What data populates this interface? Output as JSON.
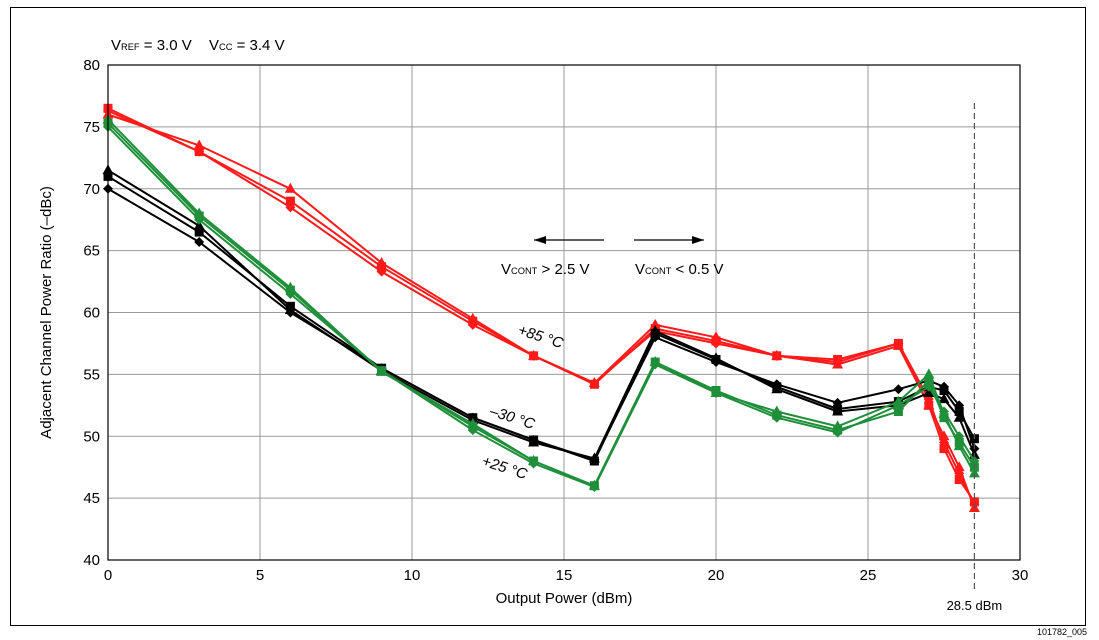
{
  "figure_id": "101782_005",
  "chart_data": {
    "type": "line",
    "title": "",
    "xlabel": "Output Power (dBm)",
    "ylabel": "Adjacent Channel Power Ratio (–dBc)",
    "xlim": [
      0,
      30
    ],
    "ylim": [
      40,
      80
    ],
    "xticks": [
      0,
      5,
      10,
      15,
      20,
      25,
      30
    ],
    "yticks": [
      40,
      45,
      50,
      55,
      60,
      65,
      70,
      75,
      80
    ],
    "grid": true,
    "conditions": {
      "vref": {
        "sym": "V",
        "sub": "REF",
        "rest": " = 3.0 V"
      },
      "vcc": {
        "sym": "V",
        "sub": "CC",
        "rest": " = 3.4 V"
      }
    },
    "annotations": {
      "arrow_left_label": {
        "sym": "V",
        "sub": "CONT",
        "rest": " > 2.5 V"
      },
      "arrow_right_label": {
        "sym": "V",
        "sub": "CONT",
        "rest": " < 0.5 V"
      },
      "marker_label": "28.5 dBm",
      "marker_x": 28.5
    },
    "temperature_labels": {
      "hot": "+85 °C",
      "cold": "–30 °C",
      "room": "+25 °C"
    },
    "colors": {
      "hot": "#ff1a1a",
      "cold": "#000000",
      "room": "#1f8f3a"
    },
    "series": [
      {
        "group": "hot",
        "marker": "diamond",
        "x": [
          0,
          3,
          6,
          9,
          12,
          14,
          16,
          18,
          20,
          22,
          24,
          26,
          27,
          27.5,
          28,
          28.5
        ],
        "y": [
          76.3,
          73.0,
          68.5,
          63.3,
          59.0,
          56.5,
          54.3,
          58.5,
          57.5,
          56.5,
          56.0,
          57.5,
          53.0,
          49.5,
          47.0,
          44.5
        ]
      },
      {
        "group": "hot",
        "marker": "square",
        "x": [
          0,
          3,
          6,
          9,
          12,
          14,
          16,
          18,
          20,
          22,
          24,
          26,
          27,
          27.5,
          28,
          28.5
        ],
        "y": [
          76.5,
          73.0,
          69.0,
          63.7,
          59.3,
          56.5,
          54.2,
          58.7,
          57.7,
          56.5,
          56.2,
          57.5,
          52.5,
          49.0,
          46.5,
          44.7
        ]
      },
      {
        "group": "hot",
        "marker": "triangle",
        "x": [
          0,
          3,
          6,
          9,
          12,
          14,
          16,
          18,
          20,
          22,
          24,
          26,
          27,
          27.5,
          28,
          28.5
        ],
        "y": [
          76.0,
          73.5,
          70.0,
          64.0,
          59.5,
          56.5,
          54.3,
          59.0,
          58.0,
          56.5,
          55.8,
          57.3,
          52.5,
          50.0,
          47.5,
          44.2
        ]
      },
      {
        "group": "cold",
        "marker": "diamond",
        "x": [
          0,
          3,
          6,
          9,
          12,
          14,
          16,
          18,
          20,
          22,
          24,
          26,
          27,
          27.5,
          28,
          28.5
        ],
        "y": [
          70.0,
          65.7,
          60.0,
          55.5,
          51.5,
          49.7,
          48.1,
          58.0,
          56.0,
          54.2,
          52.7,
          53.8,
          54.5,
          54.0,
          52.5,
          49.0
        ]
      },
      {
        "group": "cold",
        "marker": "square",
        "x": [
          0,
          3,
          6,
          9,
          12,
          14,
          16,
          18,
          20,
          22,
          24,
          26,
          27,
          27.5,
          28,
          28.5
        ],
        "y": [
          71.0,
          66.5,
          60.5,
          55.5,
          51.5,
          49.7,
          48.0,
          58.3,
          56.2,
          54.0,
          52.2,
          52.8,
          54.0,
          53.7,
          52.0,
          49.8
        ]
      },
      {
        "group": "cold",
        "marker": "triangle",
        "x": [
          0,
          3,
          6,
          9,
          12,
          14,
          16,
          18,
          20,
          22,
          24,
          26,
          27,
          27.5,
          28,
          28.5
        ],
        "y": [
          71.5,
          67.0,
          60.2,
          55.3,
          51.3,
          49.5,
          48.2,
          58.5,
          56.3,
          53.8,
          52.0,
          52.5,
          53.5,
          53.0,
          51.5,
          48.5
        ]
      },
      {
        "group": "room",
        "marker": "diamond",
        "x": [
          0,
          3,
          6,
          9,
          12,
          14,
          16,
          18,
          20,
          22,
          24,
          26,
          27,
          27.5,
          28,
          28.5
        ],
        "y": [
          75.0,
          67.5,
          61.5,
          55.3,
          50.5,
          47.8,
          45.9,
          55.8,
          53.5,
          51.5,
          50.3,
          52.5,
          54.0,
          52.0,
          50.0,
          48.0
        ]
      },
      {
        "group": "room",
        "marker": "square",
        "x": [
          0,
          3,
          6,
          9,
          12,
          14,
          16,
          18,
          20,
          22,
          24,
          26,
          27,
          27.5,
          28,
          28.5
        ],
        "y": [
          75.3,
          67.8,
          61.8,
          55.3,
          50.8,
          48.0,
          46.0,
          56.0,
          53.7,
          51.7,
          50.5,
          52.0,
          54.5,
          51.5,
          49.5,
          47.5
        ]
      },
      {
        "group": "room",
        "marker": "triangle",
        "x": [
          0,
          3,
          6,
          9,
          12,
          14,
          16,
          18,
          20,
          22,
          24,
          26,
          27,
          27.5,
          28,
          28.5
        ],
        "y": [
          75.6,
          68.0,
          62.0,
          55.2,
          51.0,
          48.0,
          46.0,
          56.0,
          53.5,
          52.0,
          50.8,
          52.8,
          55.0,
          51.8,
          49.2,
          47.0
        ]
      }
    ]
  }
}
